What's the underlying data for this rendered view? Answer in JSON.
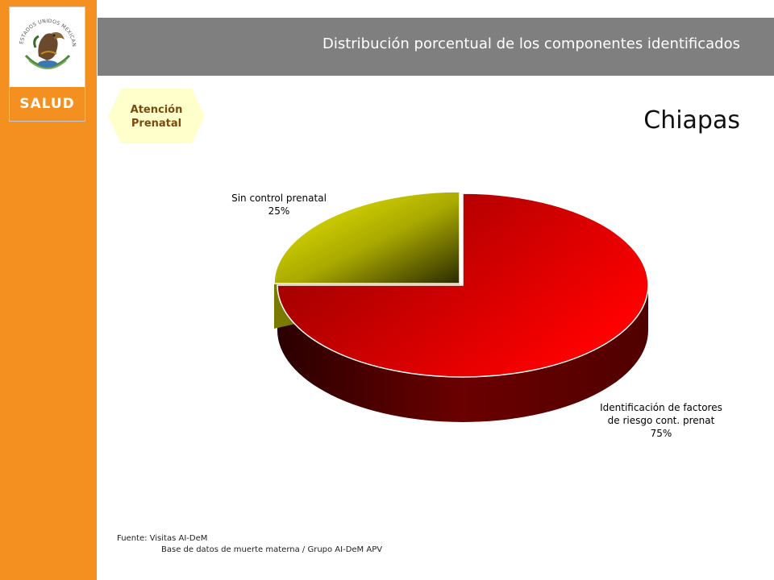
{
  "header": {
    "title": "Distribución porcentual de los componentes identificados",
    "logo_label": "SALUD",
    "logo_arc_text": "ESTADOS UNIDOS MEXICANOS"
  },
  "section": {
    "line1": "Atención",
    "line2": "Prenatal"
  },
  "state": "Chiapas",
  "colors": {
    "sidebar": "#f39020",
    "title_bar": "#7f7f7f",
    "tag": "#ffffcc"
  },
  "chart_data": {
    "type": "pie",
    "title": "",
    "slices": [
      {
        "label_lines": [
          "Identificación de factores",
          "de riesgo cont. prenat"
        ],
        "value": 75,
        "value_label": "75%",
        "color": "#e00000"
      },
      {
        "label_lines": [
          "Sin control prenatal"
        ],
        "value": 25,
        "value_label": "25%",
        "color": "#d8d800"
      }
    ]
  },
  "source": {
    "line1": "Fuente: Visitas AI-DeM",
    "line2": "Base de datos de muerte materna / Grupo AI-DeM APV"
  }
}
